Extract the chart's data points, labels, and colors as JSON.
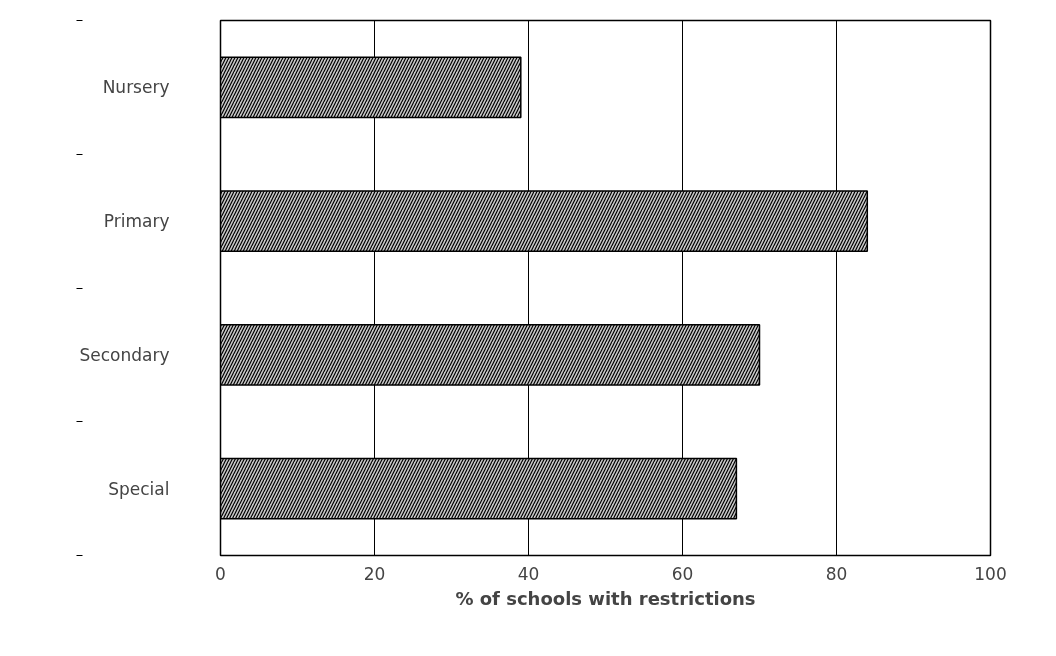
{
  "chart_data": {
    "type": "bar",
    "orientation": "horizontal",
    "xlabel": "% of schools with restrictions",
    "categories": [
      "Nursery",
      "Primary",
      "Secondary",
      "Special"
    ],
    "values": [
      39,
      84,
      70,
      67
    ],
    "color": "#c8c8c8",
    "xlim": [
      0,
      100
    ],
    "xticks": [
      0,
      20,
      40,
      60,
      80,
      100
    ],
    "grid": "x"
  }
}
